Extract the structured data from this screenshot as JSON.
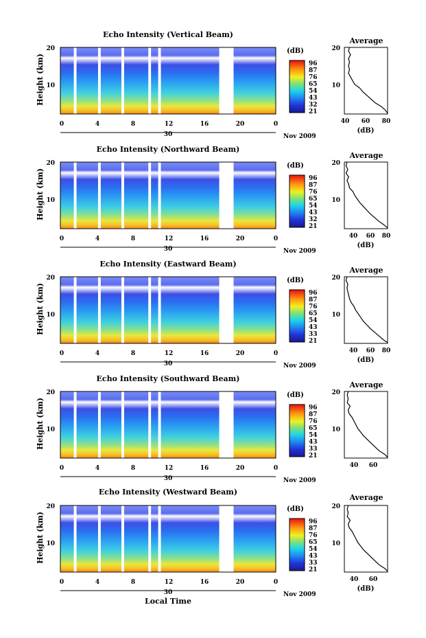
{
  "chart_data": [
    {
      "type": "heatmap",
      "title": "Echo Intensity (Vertical Beam)",
      "ylabel": "Height (km)",
      "ylim": [
        2,
        20
      ],
      "y_ticks": [
        "20",
        "10"
      ],
      "x_ticks": [
        "0",
        "4",
        "8",
        "12",
        "16",
        "20",
        "0"
      ],
      "xlim": [
        0,
        24
      ],
      "date_label": "30",
      "month_label": "Nov 2009",
      "colorbar": {
        "unit": "(dB)",
        "ticks": [
          "96",
          "87",
          "76",
          "65",
          "54",
          "43",
          "32",
          "21"
        ]
      },
      "data_gaps_hours": [
        [
          1.5,
          1.8
        ],
        [
          4.2,
          4.5
        ],
        [
          6.8,
          7.1
        ],
        [
          9.8,
          10.1
        ],
        [
          10.9,
          11.2
        ],
        [
          17.7,
          19.3
        ]
      ],
      "profile": {
        "title": "Average",
        "xlabel": "(dB)",
        "x_ticks": [
          "40",
          "60",
          "80"
        ],
        "xlim": [
          40,
          82
        ],
        "y_ticks": [
          "20",
          "10"
        ],
        "ylim": [
          2,
          20
        ],
        "points": [
          [
            82,
            2.2
          ],
          [
            80,
            3
          ],
          [
            76,
            4
          ],
          [
            70,
            5
          ],
          [
            66,
            6
          ],
          [
            62,
            7
          ],
          [
            58,
            8
          ],
          [
            55,
            9
          ],
          [
            50,
            10
          ],
          [
            48,
            11
          ],
          [
            46,
            12
          ],
          [
            44,
            13
          ],
          [
            45,
            14
          ],
          [
            44,
            15
          ],
          [
            45,
            16
          ],
          [
            44,
            17
          ],
          [
            46,
            18
          ],
          [
            44,
            19
          ],
          [
            45,
            20
          ]
        ]
      }
    },
    {
      "type": "heatmap",
      "title": "Echo Intensity (Northward Beam)",
      "ylabel": "Height (km)",
      "ylim": [
        2,
        20
      ],
      "y_ticks": [
        "20",
        "10"
      ],
      "x_ticks": [
        "0",
        "4",
        "8",
        "12",
        "16",
        "20",
        "0"
      ],
      "xlim": [
        0,
        24
      ],
      "date_label": "30",
      "month_label": "Nov 2009",
      "colorbar": {
        "unit": "(dB)",
        "ticks": [
          "96",
          "87",
          "76",
          "65",
          "54",
          "43",
          "32",
          "21"
        ]
      },
      "data_gaps_hours": [
        [
          1.5,
          1.8
        ],
        [
          4.2,
          4.5
        ],
        [
          6.8,
          7.1
        ],
        [
          9.8,
          10.1
        ],
        [
          10.9,
          11.2
        ],
        [
          17.7,
          19.3
        ]
      ],
      "profile": {
        "title": "Average",
        "xlabel": "(dB)",
        "x_ticks": [
          "40",
          "60",
          "80"
        ],
        "xlim": [
          30,
          80
        ],
        "y_ticks": [
          "20",
          "10"
        ],
        "ylim": [
          2,
          20
        ],
        "points": [
          [
            80,
            2.2
          ],
          [
            76,
            3
          ],
          [
            70,
            4
          ],
          [
            65,
            5
          ],
          [
            60,
            6
          ],
          [
            56,
            7
          ],
          [
            52,
            8
          ],
          [
            48,
            9
          ],
          [
            45,
            10
          ],
          [
            42,
            11
          ],
          [
            40,
            12
          ],
          [
            36,
            13
          ],
          [
            35,
            14
          ],
          [
            33,
            15
          ],
          [
            35,
            16
          ],
          [
            32,
            17
          ],
          [
            34,
            18
          ],
          [
            32,
            19
          ],
          [
            33,
            20
          ]
        ]
      }
    },
    {
      "type": "heatmap",
      "title": "Echo Intensity (Eastward Beam)",
      "ylabel": "Height (km)",
      "ylim": [
        2,
        20
      ],
      "y_ticks": [
        "20",
        "10"
      ],
      "x_ticks": [
        "0",
        "4",
        "8",
        "12",
        "16",
        "20",
        "0"
      ],
      "xlim": [
        0,
        24
      ],
      "date_label": "30",
      "month_label": "Nov 2009",
      "colorbar": {
        "unit": "(dB)",
        "ticks": [
          "96",
          "87",
          "76",
          "65",
          "54",
          "43",
          "33",
          "21"
        ]
      },
      "data_gaps_hours": [
        [
          1.5,
          1.8
        ],
        [
          4.2,
          4.5
        ],
        [
          6.8,
          7.1
        ],
        [
          9.8,
          10.1
        ],
        [
          10.9,
          11.2
        ],
        [
          17.7,
          19.3
        ]
      ],
      "profile": {
        "title": "Average",
        "xlabel": "(dB)",
        "x_ticks": [
          "40",
          "60",
          "80"
        ],
        "xlim": [
          30,
          80
        ],
        "y_ticks": [
          "20",
          "10"
        ],
        "ylim": [
          2,
          20
        ],
        "points": [
          [
            80,
            2.2
          ],
          [
            75,
            3
          ],
          [
            70,
            4
          ],
          [
            65,
            5
          ],
          [
            60,
            6
          ],
          [
            56,
            7
          ],
          [
            52,
            8
          ],
          [
            49,
            9
          ],
          [
            46,
            10
          ],
          [
            43,
            11
          ],
          [
            41,
            12
          ],
          [
            38,
            13
          ],
          [
            36,
            14
          ],
          [
            35,
            15
          ],
          [
            34,
            16
          ],
          [
            33,
            17
          ],
          [
            34,
            18
          ],
          [
            32,
            19
          ],
          [
            33,
            20
          ]
        ]
      }
    },
    {
      "type": "heatmap",
      "title": "Echo Intensity (Southward Beam)",
      "ylabel": "Height (km)",
      "ylim": [
        2,
        20
      ],
      "y_ticks": [
        "20",
        "10"
      ],
      "x_ticks": [
        "0",
        "4",
        "8",
        "12",
        "16",
        "20",
        "0"
      ],
      "xlim": [
        0,
        24
      ],
      "date_label": "30",
      "month_label": "Nov 2009",
      "colorbar": {
        "unit": "(dB)",
        "ticks": [
          "96",
          "87",
          "76",
          "65",
          "54",
          "43",
          "33",
          "21"
        ]
      },
      "data_gaps_hours": [
        [
          1.5,
          1.8
        ],
        [
          4.2,
          4.5
        ],
        [
          6.8,
          7.1
        ],
        [
          9.8,
          10.1
        ],
        [
          10.9,
          11.2
        ],
        [
          17.7,
          19.3
        ]
      ],
      "profile": {
        "title": "Average",
        "xlabel": "",
        "x_ticks": [
          "40",
          "60"
        ],
        "xlim": [
          30,
          75
        ],
        "y_ticks": [
          "20",
          "10"
        ],
        "ylim": [
          2,
          20
        ],
        "points": [
          [
            75,
            2.2
          ],
          [
            72,
            3
          ],
          [
            66,
            4
          ],
          [
            62,
            5
          ],
          [
            58,
            6
          ],
          [
            54,
            7
          ],
          [
            50,
            8
          ],
          [
            47,
            9
          ],
          [
            44,
            10
          ],
          [
            42,
            11
          ],
          [
            40,
            12
          ],
          [
            38,
            13
          ],
          [
            35,
            14
          ],
          [
            34,
            15
          ],
          [
            36,
            16
          ],
          [
            33,
            17
          ],
          [
            34,
            18
          ],
          [
            33,
            19
          ],
          [
            34,
            20
          ]
        ]
      }
    },
    {
      "type": "heatmap",
      "title": "Echo Intensity (Westward Beam)",
      "ylabel": "Height (km)",
      "ylim": [
        2,
        20
      ],
      "y_ticks": [
        "20",
        "10"
      ],
      "x_ticks": [
        "0",
        "4",
        "8",
        "12",
        "16",
        "20",
        "0"
      ],
      "xlim": [
        0,
        24
      ],
      "date_label": "30",
      "month_label": "Nov 2009",
      "colorbar": {
        "unit": "(dB)",
        "ticks": [
          "96",
          "87",
          "76",
          "65",
          "54",
          "43",
          "33",
          "21"
        ]
      },
      "data_gaps_hours": [
        [
          1.5,
          1.8
        ],
        [
          4.2,
          4.5
        ],
        [
          6.8,
          7.1
        ],
        [
          9.8,
          10.1
        ],
        [
          10.9,
          11.2
        ],
        [
          17.7,
          19.3
        ]
      ],
      "profile": {
        "title": "Average",
        "xlabel": "(dB)",
        "x_ticks": [
          "40",
          "60"
        ],
        "xlim": [
          30,
          75
        ],
        "y_ticks": [
          "20",
          "10"
        ],
        "ylim": [
          2,
          20
        ],
        "points": [
          [
            75,
            2.2
          ],
          [
            72,
            3
          ],
          [
            66,
            4
          ],
          [
            62,
            5
          ],
          [
            58,
            6
          ],
          [
            54,
            7
          ],
          [
            50,
            8
          ],
          [
            47,
            9
          ],
          [
            44,
            10
          ],
          [
            42,
            11
          ],
          [
            40,
            12
          ],
          [
            38,
            13
          ],
          [
            35,
            14
          ],
          [
            34,
            15
          ],
          [
            36,
            16
          ],
          [
            33,
            17
          ],
          [
            34,
            18
          ],
          [
            33,
            19
          ],
          [
            34,
            20
          ]
        ]
      }
    }
  ],
  "xaxis_label": "Local Time"
}
